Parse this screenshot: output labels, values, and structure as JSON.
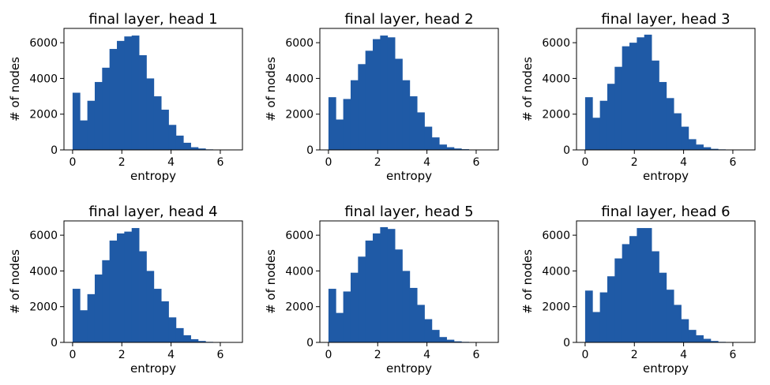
{
  "chart_data": [
    {
      "type": "bar",
      "title": "final layer, head 1",
      "xlabel": "entropy",
      "ylabel": "# of nodes",
      "xlim": [
        -0.35,
        6.9
      ],
      "ylim": [
        0,
        6800
      ],
      "xticks": [
        "0",
        "2",
        "4",
        "6"
      ],
      "yticks": [
        "0",
        "2000",
        "4000",
        "6000"
      ],
      "bin_width": 0.3,
      "bin_start": 0,
      "values": [
        3200,
        1650,
        2750,
        3800,
        4600,
        5650,
        6100,
        6350,
        6400,
        5300,
        4000,
        3000,
        2250,
        1400,
        800,
        400,
        150,
        80,
        30,
        10,
        5
      ],
      "color": "#1f5aa6",
      "grid": false
    },
    {
      "type": "bar",
      "title": "final layer, head 2",
      "xlabel": "entropy",
      "ylabel": "# of nodes",
      "xlim": [
        -0.35,
        6.9
      ],
      "ylim": [
        0,
        6800
      ],
      "xticks": [
        "0",
        "2",
        "4",
        "6"
      ],
      "yticks": [
        "0",
        "2000",
        "4000",
        "6000"
      ],
      "bin_width": 0.3,
      "bin_start": 0,
      "values": [
        2950,
        1700,
        2850,
        3900,
        4800,
        5550,
        6200,
        6400,
        6300,
        5100,
        3900,
        3000,
        2100,
        1300,
        700,
        300,
        150,
        80,
        40,
        15,
        5
      ],
      "color": "#1f5aa6",
      "grid": false
    },
    {
      "type": "bar",
      "title": "final layer, head 3",
      "xlabel": "entropy",
      "ylabel": "# of nodes",
      "xlim": [
        -0.35,
        6.9
      ],
      "ylim": [
        0,
        6800
      ],
      "xticks": [
        "0",
        "2",
        "4",
        "6"
      ],
      "yticks": [
        "0",
        "2000",
        "4000",
        "6000"
      ],
      "bin_width": 0.3,
      "bin_start": 0,
      "values": [
        2950,
        1800,
        2750,
        3700,
        4650,
        5800,
        6000,
        6300,
        6450,
        5000,
        3800,
        2900,
        2050,
        1300,
        600,
        300,
        150,
        60,
        30,
        10,
        5
      ],
      "color": "#1f5aa6",
      "grid": false
    },
    {
      "type": "bar",
      "title": "final layer, head 4",
      "xlabel": "entropy",
      "ylabel": "# of nodes",
      "xlim": [
        -0.35,
        6.9
      ],
      "ylim": [
        0,
        6800
      ],
      "xticks": [
        "0",
        "2",
        "4",
        "6"
      ],
      "yticks": [
        "0",
        "2000",
        "4000",
        "6000"
      ],
      "bin_width": 0.3,
      "bin_start": 0,
      "values": [
        3000,
        1800,
        2700,
        3800,
        4600,
        5700,
        6100,
        6200,
        6400,
        5100,
        4000,
        3000,
        2300,
        1400,
        800,
        400,
        180,
        80,
        30,
        10,
        5
      ],
      "color": "#1f5aa6",
      "grid": false
    },
    {
      "type": "bar",
      "title": "final layer, head 5",
      "xlabel": "entropy",
      "ylabel": "# of nodes",
      "xlim": [
        -0.35,
        6.9
      ],
      "ylim": [
        0,
        6800
      ],
      "xticks": [
        "0",
        "2",
        "4",
        "6"
      ],
      "yticks": [
        "0",
        "2000",
        "4000",
        "6000"
      ],
      "bin_width": 0.3,
      "bin_start": 0,
      "values": [
        3000,
        1650,
        2850,
        3900,
        4800,
        5700,
        6100,
        6450,
        6350,
        5200,
        4000,
        3050,
        2100,
        1300,
        700,
        300,
        150,
        60,
        30,
        10,
        5
      ],
      "color": "#1f5aa6",
      "grid": false
    },
    {
      "type": "bar",
      "title": "final layer, head 6",
      "xlabel": "entropy",
      "ylabel": "# of nodes",
      "xlim": [
        -0.35,
        6.9
      ],
      "ylim": [
        0,
        6800
      ],
      "xticks": [
        "0",
        "2",
        "4",
        "6"
      ],
      "yticks": [
        "0",
        "2000",
        "4000",
        "6000"
      ],
      "bin_width": 0.3,
      "bin_start": 0,
      "values": [
        2900,
        1700,
        2800,
        3700,
        4700,
        5500,
        5950,
        6400,
        6400,
        5100,
        3900,
        2950,
        2100,
        1300,
        700,
        400,
        200,
        80,
        30,
        10,
        5
      ],
      "color": "#1f5aa6",
      "grid": false
    }
  ]
}
